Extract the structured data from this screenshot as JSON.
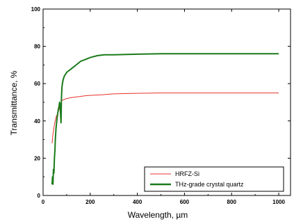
{
  "chart_data": {
    "type": "line",
    "xlabel": "Wavelength, µm",
    "ylabel": "Transmittance, %",
    "xlim": [
      0,
      1050
    ],
    "ylim": [
      0,
      100
    ],
    "xticks": [
      0,
      200,
      400,
      600,
      800,
      1000
    ],
    "yticks": [
      0,
      20,
      40,
      60,
      80,
      100
    ],
    "legend_position": "bottom-right",
    "grid": false,
    "series": [
      {
        "name": "HRFZ-Si",
        "color": "#e8312b",
        "line_width": 1,
        "x": [
          38,
          42,
          48,
          55,
          62,
          70,
          75,
          80,
          90,
          100,
          120,
          150,
          180,
          200,
          250,
          300,
          400,
          500,
          700,
          1000
        ],
        "y": [
          28,
          33,
          38,
          42,
          44,
          47,
          49,
          51,
          51.5,
          52,
          52.5,
          53,
          53.5,
          53.7,
          54,
          54.5,
          54.8,
          55,
          55,
          55
        ]
      },
      {
        "name": "THz-grade crystal quartz",
        "color": "#1a7a1a",
        "line_width": 2,
        "x": [
          38,
          40,
          42,
          44,
          46,
          48,
          50,
          52,
          55,
          58,
          60,
          63,
          66,
          68,
          70,
          72,
          74,
          76,
          78,
          80,
          82,
          85,
          90,
          100,
          110,
          120,
          140,
          160,
          180,
          200,
          230,
          260,
          300,
          400,
          500,
          700,
          1000
        ],
        "y": [
          6,
          10,
          6,
          14,
          12,
          20,
          24,
          30,
          36,
          40,
          42,
          45,
          47,
          48,
          50,
          49,
          44,
          39,
          52,
          58,
          60,
          62,
          64,
          66,
          67,
          68,
          70,
          72,
          73,
          74,
          75,
          75.5,
          75.5,
          75.8,
          76,
          76,
          76
        ]
      }
    ]
  }
}
